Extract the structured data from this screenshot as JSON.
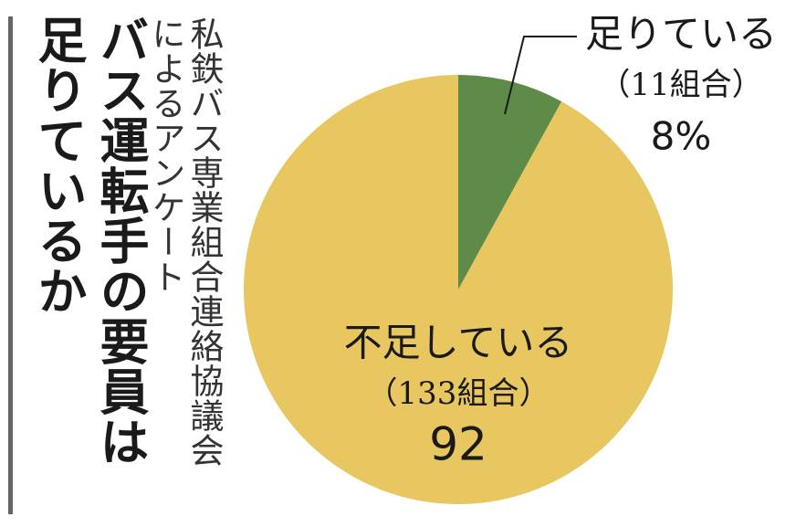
{
  "chart_data": {
    "type": "pie",
    "title": [
      "バス運転手の要員は",
      "足りているか"
    ],
    "subtitle": [
      "私鉄バス専業組合連絡協議会",
      "によるアンケート"
    ],
    "categories": [
      "足りている",
      "不足している"
    ],
    "groups": [
      "（11組合）",
      "（133組合）"
    ],
    "values": [
      8,
      92
    ],
    "value_labels": [
      "8%",
      "92"
    ],
    "colors": [
      "#5f8b48",
      "#e9c760"
    ]
  }
}
